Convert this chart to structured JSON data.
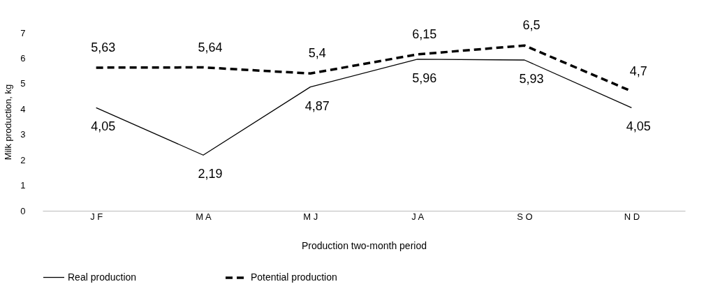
{
  "chart_data": {
    "type": "line",
    "xlabel": "Production two-month period",
    "ylabel": "Milk production, kg",
    "categories": [
      "J F",
      "M A",
      "M J",
      "J A",
      "S O",
      "N D"
    ],
    "series": [
      {
        "name": "Real production",
        "color": "#000000",
        "line_style": "solid",
        "values": [
          4.05,
          2.19,
          4.87,
          5.96,
          5.93,
          4.05
        ],
        "value_labels": [
          "4,05",
          "2,19",
          "4,87",
          "5,96",
          "5,93",
          "4,05"
        ]
      },
      {
        "name": "Potential production",
        "color": "#000000",
        "line_style": "dashed",
        "values": [
          5.63,
          5.64,
          5.4,
          6.15,
          6.5,
          4.7
        ],
        "value_labels": [
          "5,63",
          "5,64",
          "5,4",
          "6,15",
          "6,5",
          "4,7"
        ]
      }
    ],
    "ylim": [
      0,
      7
    ],
    "yticks": [
      0,
      1,
      2,
      3,
      4,
      5,
      6,
      7
    ],
    "grid": false,
    "legend": "bottom",
    "marker": "none"
  }
}
